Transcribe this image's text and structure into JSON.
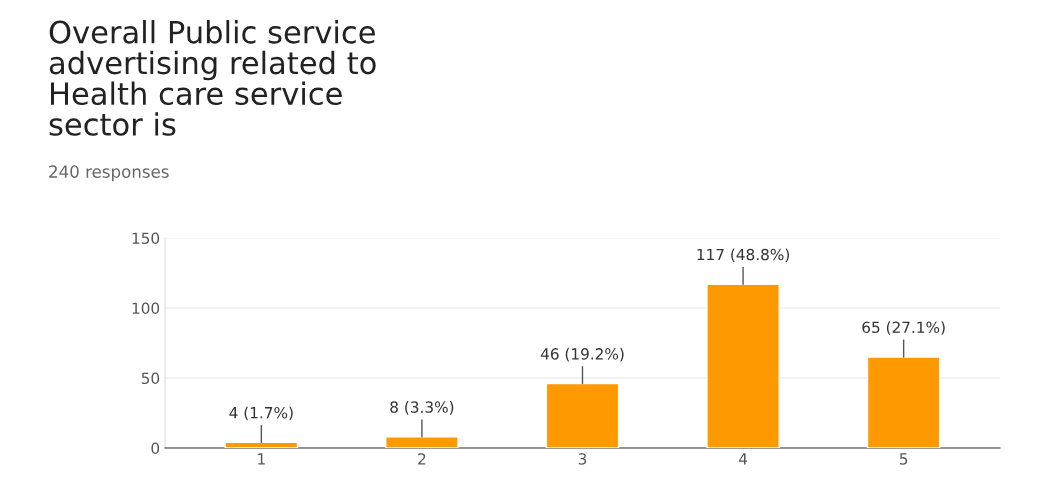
{
  "chart_data": {
    "type": "bar",
    "title": "Overall Public service\nadvertising related to\nHealth care service\nsector is",
    "subtitle": "240 responses",
    "categories": [
      "1",
      "2",
      "3",
      "4",
      "5"
    ],
    "values": [
      4,
      8,
      46,
      117,
      65
    ],
    "color": "#ff9900",
    "value_labels": [
      "4 (1.7%)",
      "8 (3.3%)",
      "46 (19.2%)",
      "117 (48.8%)",
      "65 (27.1%)"
    ],
    "ylim": [
      0,
      150
    ],
    "yticks": [
      0,
      50,
      100,
      150
    ],
    "grid": "y"
  }
}
